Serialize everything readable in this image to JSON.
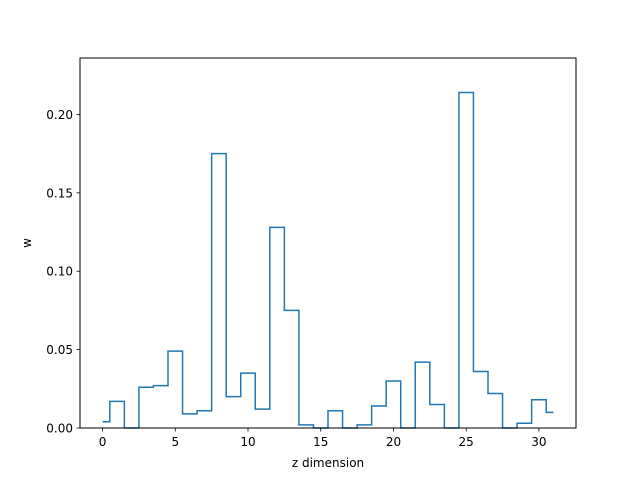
{
  "chart_data": {
    "type": "line",
    "style": "step-mid",
    "xlabel": "z dimension",
    "ylabel": "w",
    "xlim": [
      -1.55,
      32.55
    ],
    "ylim": [
      0,
      0.236
    ],
    "xticks": [
      0,
      5,
      10,
      15,
      20,
      25,
      30
    ],
    "yticks": [
      0.0,
      0.05,
      0.1,
      0.15,
      0.2
    ],
    "ytick_labels": [
      "0.00",
      "0.05",
      "0.10",
      "0.15",
      "0.20"
    ],
    "grid": false,
    "series": [
      {
        "color": "#1f77b4",
        "x": [
          0,
          1,
          2,
          3,
          4,
          5,
          6,
          7,
          8,
          9,
          10,
          11,
          12,
          13,
          14,
          15,
          16,
          17,
          18,
          19,
          20,
          21,
          22,
          23,
          24,
          25,
          26,
          27,
          28,
          29,
          30,
          31
        ],
        "values": [
          0.004,
          0.017,
          0.0,
          0.026,
          0.027,
          0.049,
          0.009,
          0.011,
          0.175,
          0.02,
          0.035,
          0.012,
          0.128,
          0.075,
          0.002,
          0.0,
          0.011,
          0.0,
          0.002,
          0.014,
          0.03,
          0.0,
          0.042,
          0.015,
          0.0,
          0.214,
          0.036,
          0.022,
          0.0,
          0.003,
          0.018,
          0.01
        ]
      }
    ]
  }
}
